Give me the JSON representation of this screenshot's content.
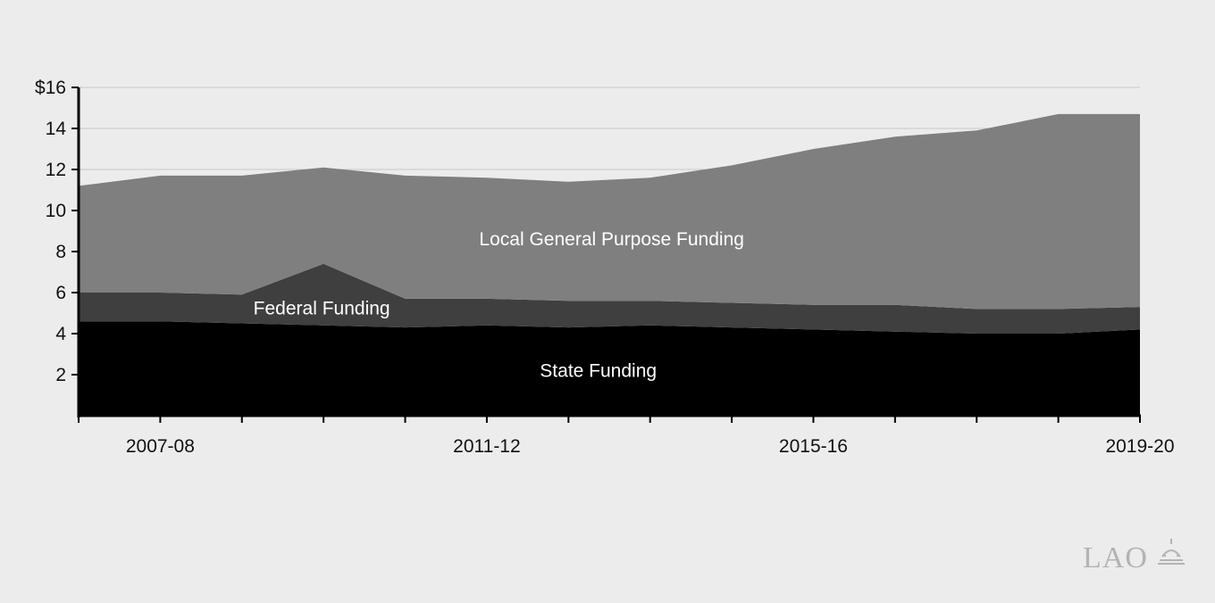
{
  "chart_data": {
    "type": "area",
    "stacked": true,
    "x": [
      "2006-07",
      "2007-08",
      "2008-09",
      "2009-10",
      "2010-11",
      "2011-12",
      "2012-13",
      "2013-14",
      "2014-15",
      "2015-16",
      "2016-17",
      "2017-18",
      "2018-19",
      "2019-20"
    ],
    "x_tick_labels": [
      "2007-08",
      "2011-12",
      "2015-16",
      "2019-20"
    ],
    "series": [
      {
        "name": "State Funding",
        "color": "#000000",
        "values": [
          4.6,
          4.6,
          4.5,
          4.4,
          4.3,
          4.4,
          4.3,
          4.4,
          4.3,
          4.2,
          4.1,
          4.0,
          4.0,
          4.2
        ]
      },
      {
        "name": "Federal Funding",
        "color": "#3f3f3f",
        "values": [
          1.4,
          1.4,
          1.4,
          3.0,
          1.4,
          1.3,
          1.3,
          1.2,
          1.2,
          1.2,
          1.3,
          1.2,
          1.2,
          1.1
        ]
      },
      {
        "name": "Local General Purpose Funding",
        "color": "#7f7f7f",
        "values": [
          5.2,
          5.7,
          5.8,
          4.7,
          6.0,
          5.9,
          5.8,
          6.0,
          6.7,
          7.6,
          8.2,
          8.7,
          9.5,
          9.4
        ]
      }
    ],
    "ylim": [
      0,
      16
    ],
    "y_ticks": [
      2,
      4,
      6,
      8,
      10,
      12,
      14,
      16
    ],
    "y_tick_labels": [
      "2",
      "4",
      "6",
      "8",
      "10",
      "12",
      "14",
      "$16"
    ],
    "grid": true,
    "title": "",
    "xlabel": "",
    "ylabel": ""
  },
  "logo": {
    "text": "LAO",
    "color": "#b3b3b3"
  },
  "colors": {
    "background": "#ececec",
    "grid": "#c8c8c8",
    "axis": "#000000"
  }
}
